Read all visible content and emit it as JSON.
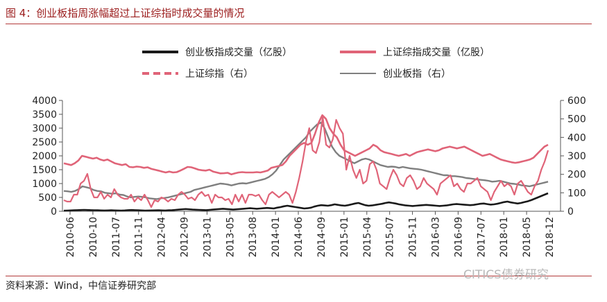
{
  "figure": {
    "title": "图 4：创业板指周涨幅超过上证综指时成交量的情况",
    "source": "资料来源：Wind，中信证券研究部",
    "watermark": "CITICS债券研究"
  },
  "chart_data": {
    "type": "line",
    "x_ticks": [
      "2010-06",
      "2010-10",
      "2011-07",
      "2011-11",
      "2012-04",
      "2012-09",
      "2013-01",
      "2013-05",
      "2013-08",
      "2014-01",
      "2014-06",
      "2014-09",
      "2015-01",
      "2015-04",
      "2015-07",
      "2015-11",
      "2016-03",
      "2016-09",
      "2017-07",
      "2018-01",
      "2018-05",
      "2018-12"
    ],
    "y_left": {
      "min": 0,
      "max": 4000,
      "ticks": [
        0,
        500,
        1000,
        1500,
        2000,
        2500,
        3000,
        3500,
        4000
      ]
    },
    "y_right": {
      "min": 0,
      "max": 600,
      "ticks": [
        0,
        100,
        200,
        300,
        400,
        500,
        600
      ]
    },
    "legend": [
      {
        "name": "创业板指成交量（亿股）",
        "color": "#1a1a1a",
        "style": "solid"
      },
      {
        "name": "上证综指成交量（亿股）",
        "color": "#e06478",
        "style": "solid"
      },
      {
        "name": "上证综指（右）",
        "color": "#e06478",
        "style": "dashed"
      },
      {
        "name": "创业板指（右）",
        "color": "#7f7f7f",
        "style": "thin"
      }
    ],
    "series": [
      {
        "name": "创业板指成交量（亿股）",
        "axis": "left",
        "values": [
          20,
          25,
          30,
          35,
          40,
          45,
          50,
          45,
          40,
          38,
          35,
          30,
          28,
          30,
          35,
          30,
          28,
          25,
          30,
          40,
          45,
          40,
          35,
          30,
          25,
          28,
          30,
          32,
          35,
          30,
          28,
          35,
          40,
          50,
          60,
          70,
          80,
          70,
          60,
          55,
          50,
          45,
          40,
          50,
          60,
          70,
          80,
          90,
          80,
          70,
          60,
          70,
          80,
          90,
          100,
          110,
          100,
          90,
          100,
          110,
          120,
          110,
          100,
          130,
          150,
          180,
          200,
          180,
          160,
          140,
          120,
          100,
          110,
          130,
          170,
          200,
          220,
          210,
          200,
          220,
          250,
          230,
          210,
          200,
          220,
          250,
          280,
          300,
          260,
          220,
          200,
          210,
          230,
          250,
          270,
          300,
          320,
          300,
          280,
          250,
          230,
          210,
          200,
          190,
          200,
          210,
          220,
          230,
          220,
          210,
          200,
          190,
          200,
          210,
          230,
          250,
          260,
          250,
          240,
          230,
          220,
          230,
          250,
          270,
          280,
          260,
          240,
          250,
          270,
          300,
          330,
          350,
          320,
          300,
          280,
          300,
          330,
          360,
          400,
          450,
          500,
          550,
          600,
          650
        ]
      },
      {
        "name": "上证综指成交量（亿股）",
        "axis": "left",
        "values": [
          400,
          350,
          350,
          600,
          600,
          1000,
          1100,
          1350,
          800,
          500,
          500,
          700,
          450,
          600,
          500,
          800,
          600,
          500,
          450,
          450,
          600,
          350,
          500,
          400,
          600,
          400,
          150,
          400,
          350,
          500,
          450,
          350,
          450,
          400,
          600,
          700,
          600,
          450,
          500,
          400,
          600,
          700,
          550,
          600,
          300,
          600,
          500,
          500,
          400,
          450,
          250,
          600,
          350,
          600,
          300,
          600,
          600,
          550,
          600,
          400,
          250,
          600,
          700,
          600,
          500,
          600,
          700,
          600,
          300,
          700,
          1200,
          1800,
          2500,
          3000,
          2200,
          2100,
          2500,
          3400,
          2400,
          2300,
          2600,
          3300,
          3000,
          2800,
          1500,
          2000,
          1500,
          1200,
          1500,
          1000,
          1100,
          1700,
          1800,
          1500,
          1000,
          900,
          800,
          1200,
          1500,
          1300,
          1000,
          900,
          1200,
          1300,
          1100,
          800,
          900,
          1200,
          1000,
          900,
          800,
          600,
          1000,
          1100,
          1200,
          1300,
          900,
          1000,
          800,
          700,
          1000,
          1000,
          1100,
          1200,
          900,
          800,
          700,
          400,
          700,
          900,
          1100,
          900,
          1000,
          900,
          600,
          1000,
          1100,
          900,
          700,
          600,
          900,
          1100,
          1500,
          1800,
          2200
        ]
      },
      {
        "name": "上证综指（右）",
        "axis": "right",
        "values": [
          260,
          255,
          250,
          260,
          275,
          300,
          295,
          290,
          285,
          290,
          280,
          275,
          280,
          270,
          260,
          255,
          250,
          255,
          240,
          238,
          242,
          240,
          235,
          238,
          230,
          225,
          220,
          215,
          210,
          215,
          210,
          212,
          220,
          230,
          240,
          238,
          232,
          225,
          222,
          220,
          225,
          215,
          210,
          205,
          206,
          208,
          200,
          205,
          210,
          212,
          210,
          210,
          210,
          212,
          210,
          215,
          220,
          235,
          240,
          245,
          250,
          270,
          300,
          320,
          340,
          360,
          370,
          360,
          370,
          420,
          480,
          520,
          500,
          450,
          420,
          400,
          360,
          330,
          320,
          310,
          300,
          310,
          320,
          330,
          340,
          360,
          350,
          330,
          320,
          315,
          310,
          305,
          300,
          305,
          310,
          300,
          310,
          320,
          325,
          330,
          335,
          330,
          325,
          330,
          340,
          345,
          350,
          345,
          340,
          345,
          350,
          340,
          330,
          320,
          310,
          300,
          305,
          310,
          300,
          290,
          280,
          275,
          270,
          265,
          262,
          265,
          270,
          275,
          280,
          290,
          310,
          330,
          350,
          360
        ]
      },
      {
        "name": "创业板指（右）",
        "axis": "right",
        "values": [
          110,
          108,
          105,
          110,
          120,
          135,
          130,
          125,
          115,
          110,
          108,
          100,
          98,
          95,
          97,
          90,
          88,
          80,
          75,
          78,
          80,
          78,
          75,
          70,
          68,
          66,
          70,
          72,
          75,
          80,
          85,
          90,
          95,
          100,
          105,
          115,
          120,
          125,
          130,
          135,
          140,
          145,
          150,
          148,
          145,
          140,
          145,
          150,
          152,
          150,
          155,
          160,
          165,
          170,
          175,
          185,
          200,
          220,
          250,
          280,
          300,
          320,
          340,
          360,
          380,
          400,
          430,
          450,
          470,
          480,
          450,
          400,
          350,
          320,
          300,
          290,
          280,
          270,
          260,
          270,
          280,
          285,
          280,
          270,
          260,
          250,
          245,
          240,
          242,
          240,
          235,
          240,
          236,
          232,
          230,
          228,
          225,
          220,
          215,
          210,
          205,
          200,
          195,
          195,
          190,
          190,
          188,
          185,
          180,
          178,
          175,
          172,
          170,
          168,
          165,
          160,
          162,
          165,
          160,
          155,
          150,
          148,
          145,
          140,
          138,
          135,
          140,
          145,
          150,
          155,
          160
        ]
      }
    ]
  }
}
